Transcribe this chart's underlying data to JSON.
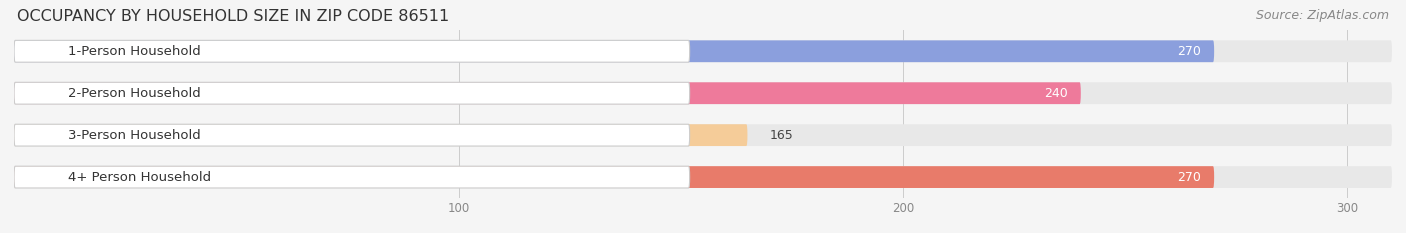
{
  "title": "OCCUPANCY BY HOUSEHOLD SIZE IN ZIP CODE 86511",
  "source": "Source: ZipAtlas.com",
  "categories": [
    "1-Person Household",
    "2-Person Household",
    "3-Person Household",
    "4+ Person Household"
  ],
  "values": [
    270,
    240,
    165,
    270
  ],
  "bar_colors": [
    "#8b9fdd",
    "#ee7a9b",
    "#f5cc99",
    "#e87b6a"
  ],
  "bar_bg_color": "#e8e8e8",
  "label_bg_color": "#ffffff",
  "label_border_color": "#cccccc",
  "xlim": [
    0,
    310
  ],
  "xticks": [
    100,
    200,
    300
  ],
  "title_fontsize": 11.5,
  "source_fontsize": 9,
  "label_fontsize": 9.5,
  "value_fontsize": 9,
  "bg_color": "#f5f5f5",
  "bar_height": 0.52,
  "figsize": [
    14.06,
    2.33
  ],
  "dpi": 100
}
